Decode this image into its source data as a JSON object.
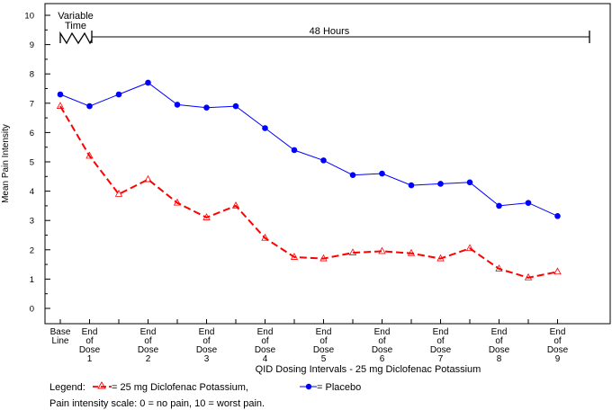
{
  "chart_data": {
    "type": "line",
    "ylabel": "Mean Pain Intensity",
    "xlabel": "QID Dosing Intervals - 25 mg Diclofenac Potassium",
    "ylim": [
      0,
      10
    ],
    "yticks": [
      0,
      1,
      2,
      3,
      4,
      5,
      6,
      7,
      8,
      9,
      10
    ],
    "x_tick_labels": [
      {
        "lines": [
          "Base",
          "Line"
        ],
        "x": 0
      },
      {
        "lines": [
          "End",
          "of",
          "Dose",
          "1"
        ],
        "x": 1
      },
      {
        "lines": [
          "End",
          "of",
          "Dose",
          "2"
        ],
        "x": 3
      },
      {
        "lines": [
          "End",
          "of",
          "Dose",
          "3"
        ],
        "x": 5
      },
      {
        "lines": [
          "End",
          "of",
          "Dose",
          "4"
        ],
        "x": 7
      },
      {
        "lines": [
          "End",
          "of",
          "Dose",
          "5"
        ],
        "x": 9
      },
      {
        "lines": [
          "End",
          "of",
          "Dose",
          "6"
        ],
        "x": 11
      },
      {
        "lines": [
          "End",
          "of",
          "Dose",
          "7"
        ],
        "x": 13
      },
      {
        "lines": [
          "End",
          "of",
          "Dose",
          "8"
        ],
        "x": 15
      },
      {
        "lines": [
          "End",
          "of",
          "Dose",
          "9"
        ],
        "x": 17
      }
    ],
    "x": [
      0,
      1,
      2,
      3,
      4,
      5,
      6,
      7,
      8,
      9,
      10,
      11,
      12,
      13,
      14,
      15,
      16,
      17
    ],
    "series": [
      {
        "name": "25 mg Diclofenac Potassium",
        "color": "#ff0000",
        "style": "dashed",
        "marker": "triangle",
        "values": [
          6.9,
          5.2,
          3.9,
          4.4,
          3.6,
          3.1,
          3.5,
          2.4,
          1.75,
          1.7,
          1.9,
          1.95,
          1.88,
          1.7,
          2.05,
          1.35,
          1.05,
          1.25
        ]
      },
      {
        "name": "Placebo",
        "color": "#0000ff",
        "style": "solid",
        "marker": "circle",
        "values": [
          7.3,
          6.9,
          7.3,
          7.7,
          6.95,
          6.85,
          6.9,
          6.15,
          5.4,
          5.05,
          4.55,
          4.6,
          4.2,
          4.25,
          4.3,
          3.5,
          3.6,
          3.15
        ]
      }
    ],
    "annotations": {
      "variable_time": [
        "Variable",
        "Time"
      ],
      "hours": "48 Hours"
    },
    "legend": {
      "prefix": "Legend:",
      "entries": [
        "= 25 mg Diclofenac Potassium,",
        "= Placebo"
      ]
    },
    "footnote": "Pain intensity scale: 0 = no pain, 10 = worst pain.",
    "grid": false
  }
}
